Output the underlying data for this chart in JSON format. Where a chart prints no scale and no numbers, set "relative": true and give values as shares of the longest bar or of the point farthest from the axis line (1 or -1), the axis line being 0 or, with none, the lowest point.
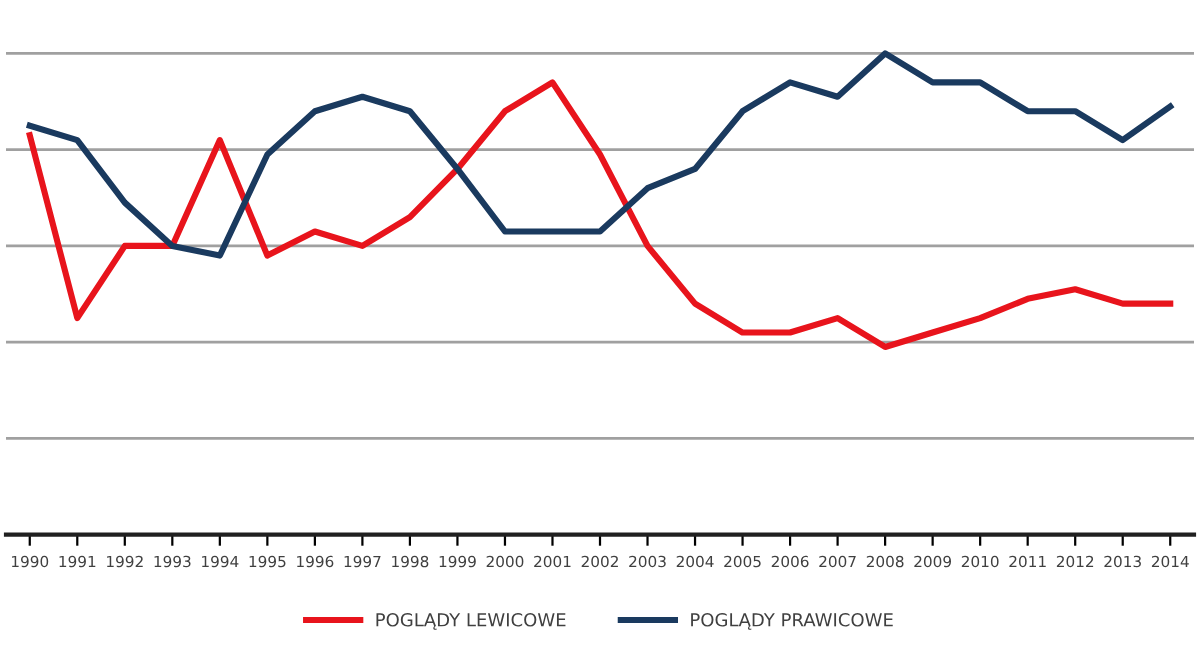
{
  "chart_data": {
    "type": "line",
    "relative": true,
    "categories": [
      "1990",
      "1991",
      "1992",
      "1993",
      "1994",
      "1995",
      "1996",
      "1997",
      "1998",
      "1999",
      "2000",
      "2001",
      "2002",
      "2003",
      "2004",
      "2005",
      "2006",
      "2007",
      "2008",
      "2009",
      "2010",
      "2011",
      "2012",
      "2013",
      "2014"
    ],
    "series": [
      {
        "name": "POGLĄDY LEWICOWE",
        "color": "#e8141c",
        "values": [
          0.83,
          0.45,
          0.6,
          0.6,
          0.82,
          0.58,
          0.63,
          0.6,
          0.66,
          0.76,
          0.88,
          0.94,
          0.79,
          0.6,
          0.48,
          0.42,
          0.42,
          0.45,
          0.39,
          0.42,
          0.45,
          0.49,
          0.51,
          0.48,
          0.48
        ]
      },
      {
        "name": "POGLĄDY PRAWICOWE",
        "color": "#1a3a5f",
        "values": [
          0.85,
          0.82,
          0.69,
          0.6,
          0.58,
          0.79,
          0.88,
          0.91,
          0.88,
          0.76,
          0.63,
          0.63,
          0.63,
          0.72,
          0.76,
          0.88,
          0.94,
          0.91,
          1.0,
          0.94,
          0.94,
          0.88,
          0.88,
          0.82,
          0.89
        ]
      }
    ],
    "grid": "y",
    "legend": "bottom",
    "marker": "none",
    "line_style": "solid"
  }
}
